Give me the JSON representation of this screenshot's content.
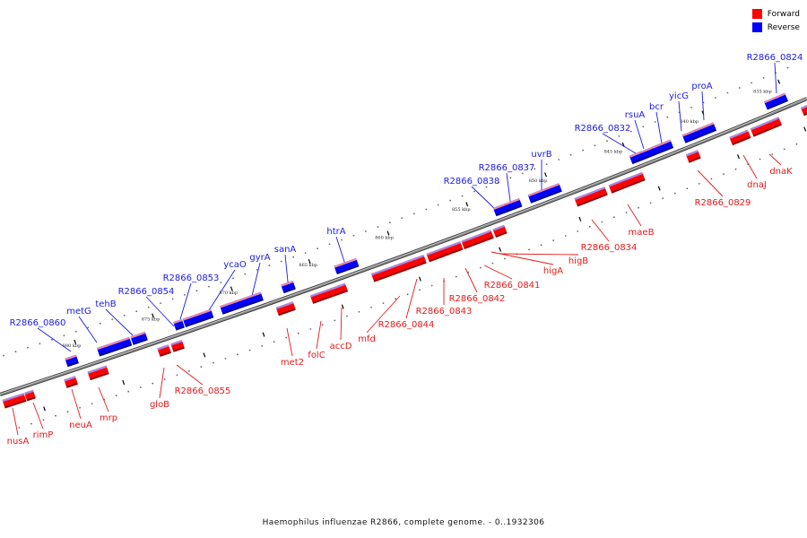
{
  "legend": [
    {
      "label": "Forward",
      "color": "#ff0000"
    },
    {
      "label": "Reverse",
      "color": "#0000ff"
    }
  ],
  "colors": {
    "forward": "#ff0000",
    "reverse": "#0000ff",
    "backbone": "#808080"
  },
  "caption": "Haemophilus influenzae R2866, complete genome. - 0..1932306",
  "scale_labels": [
    "835 kbp",
    "840 kbp",
    "845 kbp",
    "850 kbp",
    "855 kbp",
    "860 kbp",
    "865 kbp",
    "870 kbp",
    "875 kbp",
    "880 kbp"
  ],
  "genes_forward": [
    "dnaK",
    "dnaJ",
    "R2866_0829",
    "maeB",
    "R2866_0834",
    "higB",
    "higA",
    "R2866_0841",
    "R2866_0842",
    "R2866_0843",
    "R2866_0844",
    "mfd",
    "accD",
    "folC",
    "met2",
    "R2866_0855",
    "gloB",
    "mrp",
    "neuA",
    "rimP",
    "nusA"
  ],
  "genes_reverse": [
    "R2866_0824",
    "proA",
    "yicG",
    "bcr",
    "rsuA",
    "R2866_0832",
    "uvrB",
    "R2866_0837",
    "R2866_0838",
    "htrA",
    "sanA",
    "gyrA",
    "ycaO",
    "R2866_0853",
    "R2866_0854",
    "tehB",
    "metG",
    "R2866_0860"
  ]
}
